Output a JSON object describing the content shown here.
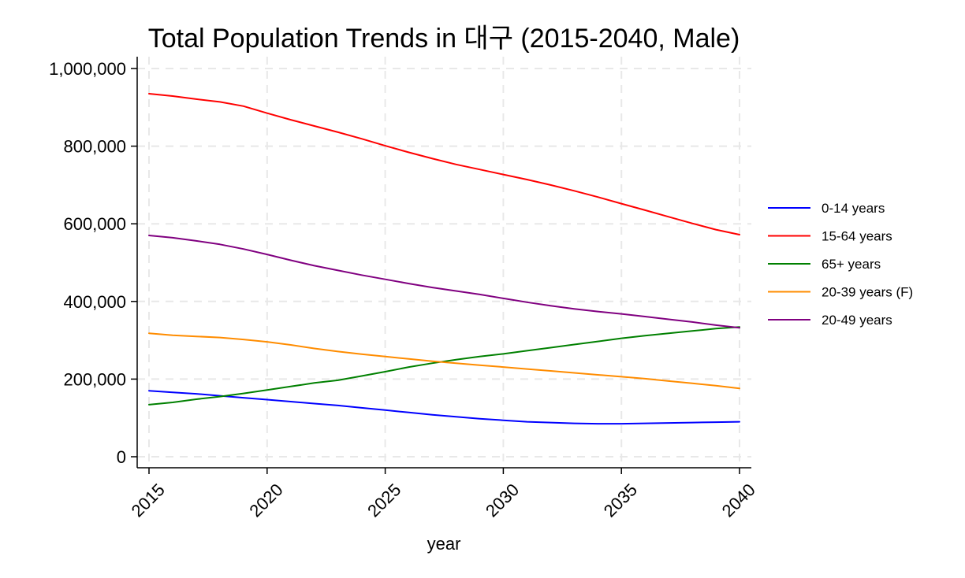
{
  "chart_data": {
    "type": "line",
    "title": "Total Population Trends in 대구 (2015-2040, Male)",
    "xlabel": "year",
    "ylabel": "",
    "x": [
      2015,
      2016,
      2017,
      2018,
      2019,
      2020,
      2021,
      2022,
      2023,
      2024,
      2025,
      2026,
      2027,
      2028,
      2029,
      2030,
      2031,
      2032,
      2033,
      2034,
      2035,
      2036,
      2037,
      2038,
      2039,
      2040
    ],
    "xlim": [
      2015,
      2040
    ],
    "ylim": [
      0,
      1000000
    ],
    "x_ticks": [
      "2015",
      "2020",
      "2025",
      "2030",
      "2035",
      "2040"
    ],
    "y_ticks": [
      "0",
      "200,000",
      "400,000",
      "600,000",
      "800,000",
      "1,000,000"
    ],
    "grid": true,
    "legend_position": "right",
    "series": [
      {
        "name": "0-14 years",
        "color": "#0000ff",
        "values": [
          170000,
          166000,
          162000,
          157000,
          152000,
          147000,
          142000,
          137000,
          132000,
          126000,
          120000,
          114000,
          108000,
          103000,
          98000,
          94000,
          90000,
          88000,
          86000,
          85000,
          85000,
          86000,
          87000,
          88000,
          89000,
          90000
        ]
      },
      {
        "name": "15-64 years",
        "color": "#ff0000",
        "values": [
          935000,
          929000,
          921000,
          914000,
          903000,
          885000,
          868000,
          852000,
          836000,
          819000,
          801000,
          784000,
          768000,
          753000,
          740000,
          727000,
          714000,
          700000,
          685000,
          669000,
          652000,
          635000,
          618000,
          601000,
          585000,
          572000
        ]
      },
      {
        "name": "65+ years",
        "color": "#008000",
        "values": [
          134000,
          140000,
          148000,
          155000,
          163000,
          172000,
          181000,
          190000,
          197000,
          208000,
          219000,
          231000,
          241000,
          250000,
          258000,
          265000,
          273000,
          281000,
          289000,
          297000,
          305000,
          312000,
          318000,
          324000,
          330000,
          334000
        ]
      },
      {
        "name": "20-39 years (F)",
        "color": "#ff8c00",
        "values": [
          318000,
          313000,
          310000,
          307000,
          302000,
          296000,
          288000,
          279000,
          271000,
          264000,
          258000,
          252000,
          246000,
          241000,
          236000,
          231000,
          226000,
          221000,
          216000,
          211000,
          206000,
          201000,
          195000,
          189000,
          183000,
          176000
        ]
      },
      {
        "name": "20-49 years",
        "color": "#800080",
        "values": [
          570000,
          564000,
          556000,
          547000,
          535000,
          521000,
          506000,
          492000,
          480000,
          468000,
          457000,
          446000,
          436000,
          427000,
          418000,
          408000,
          398000,
          389000,
          381000,
          374000,
          368000,
          361000,
          354000,
          347000,
          339000,
          332000
        ]
      }
    ]
  }
}
